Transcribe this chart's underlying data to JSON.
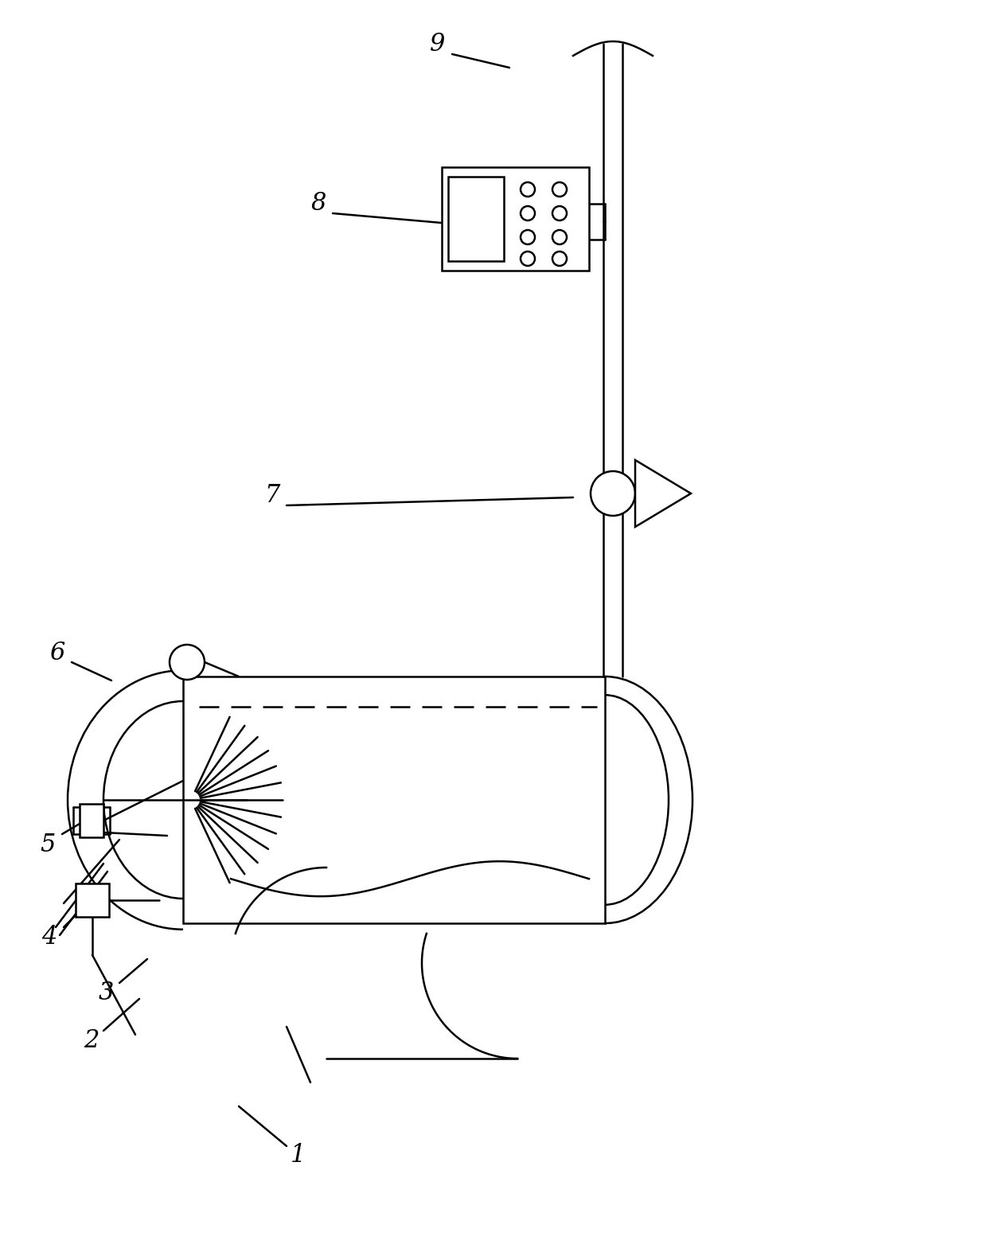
{
  "fig_width": 12.4,
  "fig_height": 15.58,
  "dpi": 100,
  "line_color": "#000000",
  "line_width": 1.8,
  "background_color": "#ffffff"
}
